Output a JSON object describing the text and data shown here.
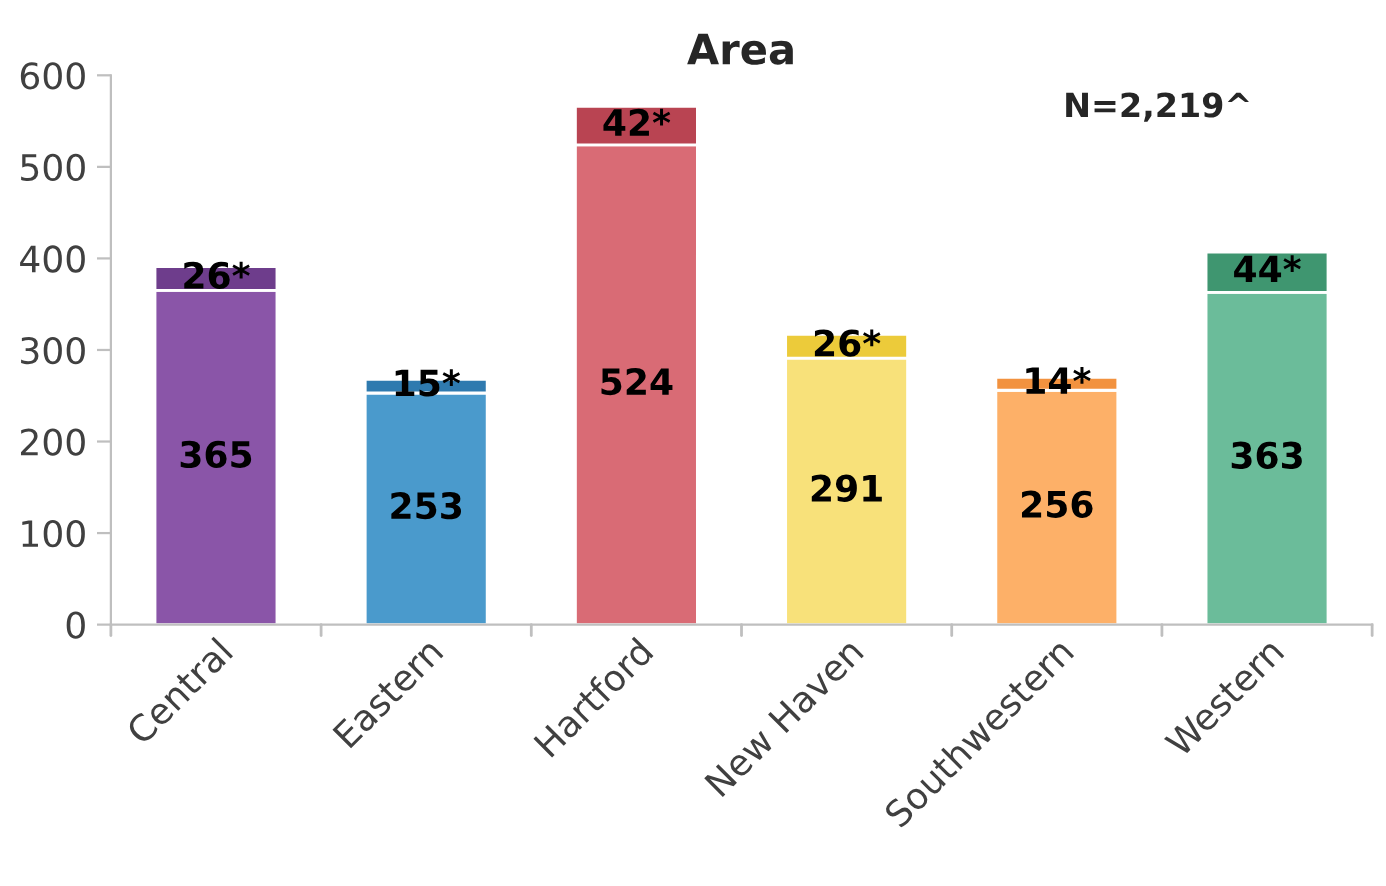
{
  "chart_data": {
    "type": "bar",
    "title": "Area",
    "stacked": true,
    "categories": [
      "Central",
      "Eastern",
      "Hartford",
      "New Haven",
      "Southwestern",
      "Western"
    ],
    "series": [
      {
        "colors": [
          "#8a55a8",
          "#4a9acc",
          "#d96b75",
          "#f8e17a",
          "#fdb068",
          "#6bbc9a"
        ],
        "values": [
          365,
          253,
          524,
          291,
          256,
          363
        ],
        "value_labels": [
          "365",
          "253",
          "524",
          "291",
          "256",
          "363"
        ]
      },
      {
        "colors": [
          "#6e3d8c",
          "#2f7aaf",
          "#b94452",
          "#eccb3a",
          "#f2923f",
          "#3f9670"
        ],
        "values": [
          26,
          15,
          42,
          26,
          14,
          44
        ],
        "value_labels": [
          "26*",
          "15*",
          "42*",
          "26*",
          "14*",
          "44*"
        ]
      }
    ],
    "ylim": [
      0,
      600
    ],
    "yticks": [
      0,
      100,
      200,
      300,
      400,
      500,
      600
    ],
    "grid": false,
    "legend": false,
    "annotations": [
      "N=2,219^"
    ]
  }
}
